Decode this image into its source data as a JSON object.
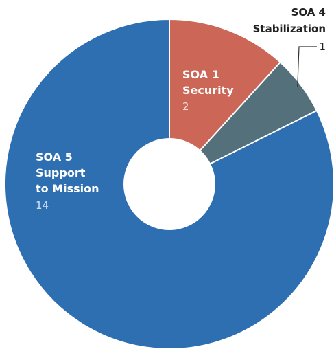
{
  "chart_data": {
    "type": "pie",
    "donut": true,
    "slices": [
      {
        "id": "soa1",
        "line1": "SOA 1",
        "line2": "Security",
        "line3": "",
        "value": 2,
        "color": "#cc6657"
      },
      {
        "id": "soa4",
        "line1": "SOA 4",
        "line2": "Stabilization",
        "line3": "",
        "value": 1,
        "color": "#54707b"
      },
      {
        "id": "soa5",
        "line1": "SOA 5",
        "line2": "Support",
        "line3": "to Mission",
        "value": 14,
        "color": "#2e6fb1"
      }
    ]
  }
}
